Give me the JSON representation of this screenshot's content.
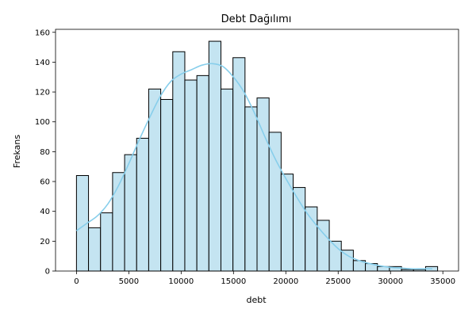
{
  "chart_data": {
    "type": "bar",
    "title": "Debt Dağılımı",
    "xlabel": "debt",
    "ylabel": "Frekans",
    "xlim": [
      -2000,
      36500
    ],
    "ylim": [
      0,
      162
    ],
    "xticks": [
      0,
      5000,
      10000,
      15000,
      20000,
      25000,
      30000,
      35000
    ],
    "yticks": [
      0,
      20,
      40,
      60,
      80,
      100,
      120,
      140,
      160
    ],
    "bin_edges": [
      0,
      1150,
      2300,
      3450,
      4600,
      5750,
      6900,
      8050,
      9200,
      10350,
      11500,
      12650,
      13800,
      14950,
      16100,
      17250,
      18400,
      19550,
      20700,
      21850,
      23000,
      24150,
      25300,
      26450,
      27600,
      28750,
      29900,
      31050,
      32200,
      33350,
      34500
    ],
    "values": [
      64,
      29,
      39,
      66,
      78,
      89,
      122,
      115,
      147,
      128,
      131,
      154,
      122,
      143,
      110,
      116,
      93,
      65,
      56,
      43,
      34,
      20,
      14,
      7,
      5,
      3,
      3,
      1,
      1,
      3
    ],
    "kde": {
      "x": [
        0,
        1000,
        2000,
        3000,
        4000,
        5000,
        6000,
        7000,
        8000,
        9000,
        10000,
        11000,
        12000,
        13000,
        14000,
        15000,
        16000,
        17000,
        18000,
        19000,
        20000,
        21000,
        22000,
        23000,
        24000,
        25000,
        26000,
        27000,
        28000,
        29000,
        30000,
        31000,
        32000,
        33000,
        34000
      ],
      "y": [
        27,
        32,
        37,
        45,
        57,
        72,
        88,
        103,
        117,
        127,
        132,
        135,
        138,
        139,
        137,
        130,
        120,
        106,
        90,
        75,
        62,
        50,
        39,
        30,
        22,
        15,
        10,
        7,
        5,
        3.5,
        2.5,
        2,
        1.5,
        1.5,
        1.5
      ]
    },
    "colors": {
      "bar_fill": "#c4e4f1",
      "bar_edge": "#000000",
      "kde_line": "#87ceeb"
    },
    "grid": false,
    "legend": "none"
  }
}
